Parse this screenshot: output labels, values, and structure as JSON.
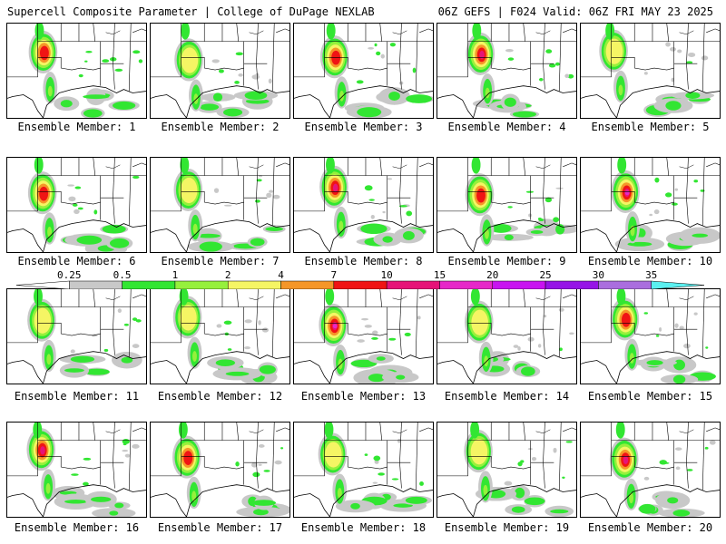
{
  "header": {
    "left_title": "Supercell Composite Parameter | College of DuPage NEXLAB",
    "right_title": "06Z GEFS | F024 Valid: 06Z FRI MAY 23 2025"
  },
  "members": [
    {
      "label": "Ensemble Member: 1",
      "level": 6
    },
    {
      "label": "Ensemble Member: 2",
      "level": 4
    },
    {
      "label": "Ensemble Member: 3",
      "level": 6
    },
    {
      "label": "Ensemble Member: 4",
      "level": 7
    },
    {
      "label": "Ensemble Member: 5",
      "level": 4
    },
    {
      "label": "Ensemble Member: 6",
      "level": 6
    },
    {
      "label": "Ensemble Member: 7",
      "level": 4
    },
    {
      "label": "Ensemble Member: 8",
      "level": 7
    },
    {
      "label": "Ensemble Member: 9",
      "level": 6
    },
    {
      "label": "Ensemble Member: 10",
      "level": 8
    },
    {
      "label": "Ensemble Member: 11",
      "level": 4
    },
    {
      "label": "Ensemble Member: 12",
      "level": 4
    },
    {
      "label": "Ensemble Member: 13",
      "level": 8
    },
    {
      "label": "Ensemble Member: 14",
      "level": 4
    },
    {
      "label": "Ensemble Member: 15",
      "level": 6
    },
    {
      "label": "Ensemble Member: 16",
      "level": 7
    },
    {
      "label": "Ensemble Member: 17",
      "level": 6
    },
    {
      "label": "Ensemble Member: 18",
      "level": 4
    },
    {
      "label": "Ensemble Member: 19",
      "level": 4
    },
    {
      "label": "Ensemble Member: 20",
      "level": 7
    }
  ],
  "colorbar": {
    "labels": [
      "0.25",
      "0.5",
      "1",
      "2",
      "4",
      "7",
      "10",
      "15",
      "20",
      "25",
      "30",
      "35"
    ],
    "colors": [
      "#ffffff",
      "#c8c8c8",
      "#32e632",
      "#96f03c",
      "#f5f564",
      "#f59628",
      "#f01414",
      "#e61478",
      "#e628c8",
      "#c814f0",
      "#9614e6",
      "#aa6ede",
      "#5af0f0"
    ]
  }
}
